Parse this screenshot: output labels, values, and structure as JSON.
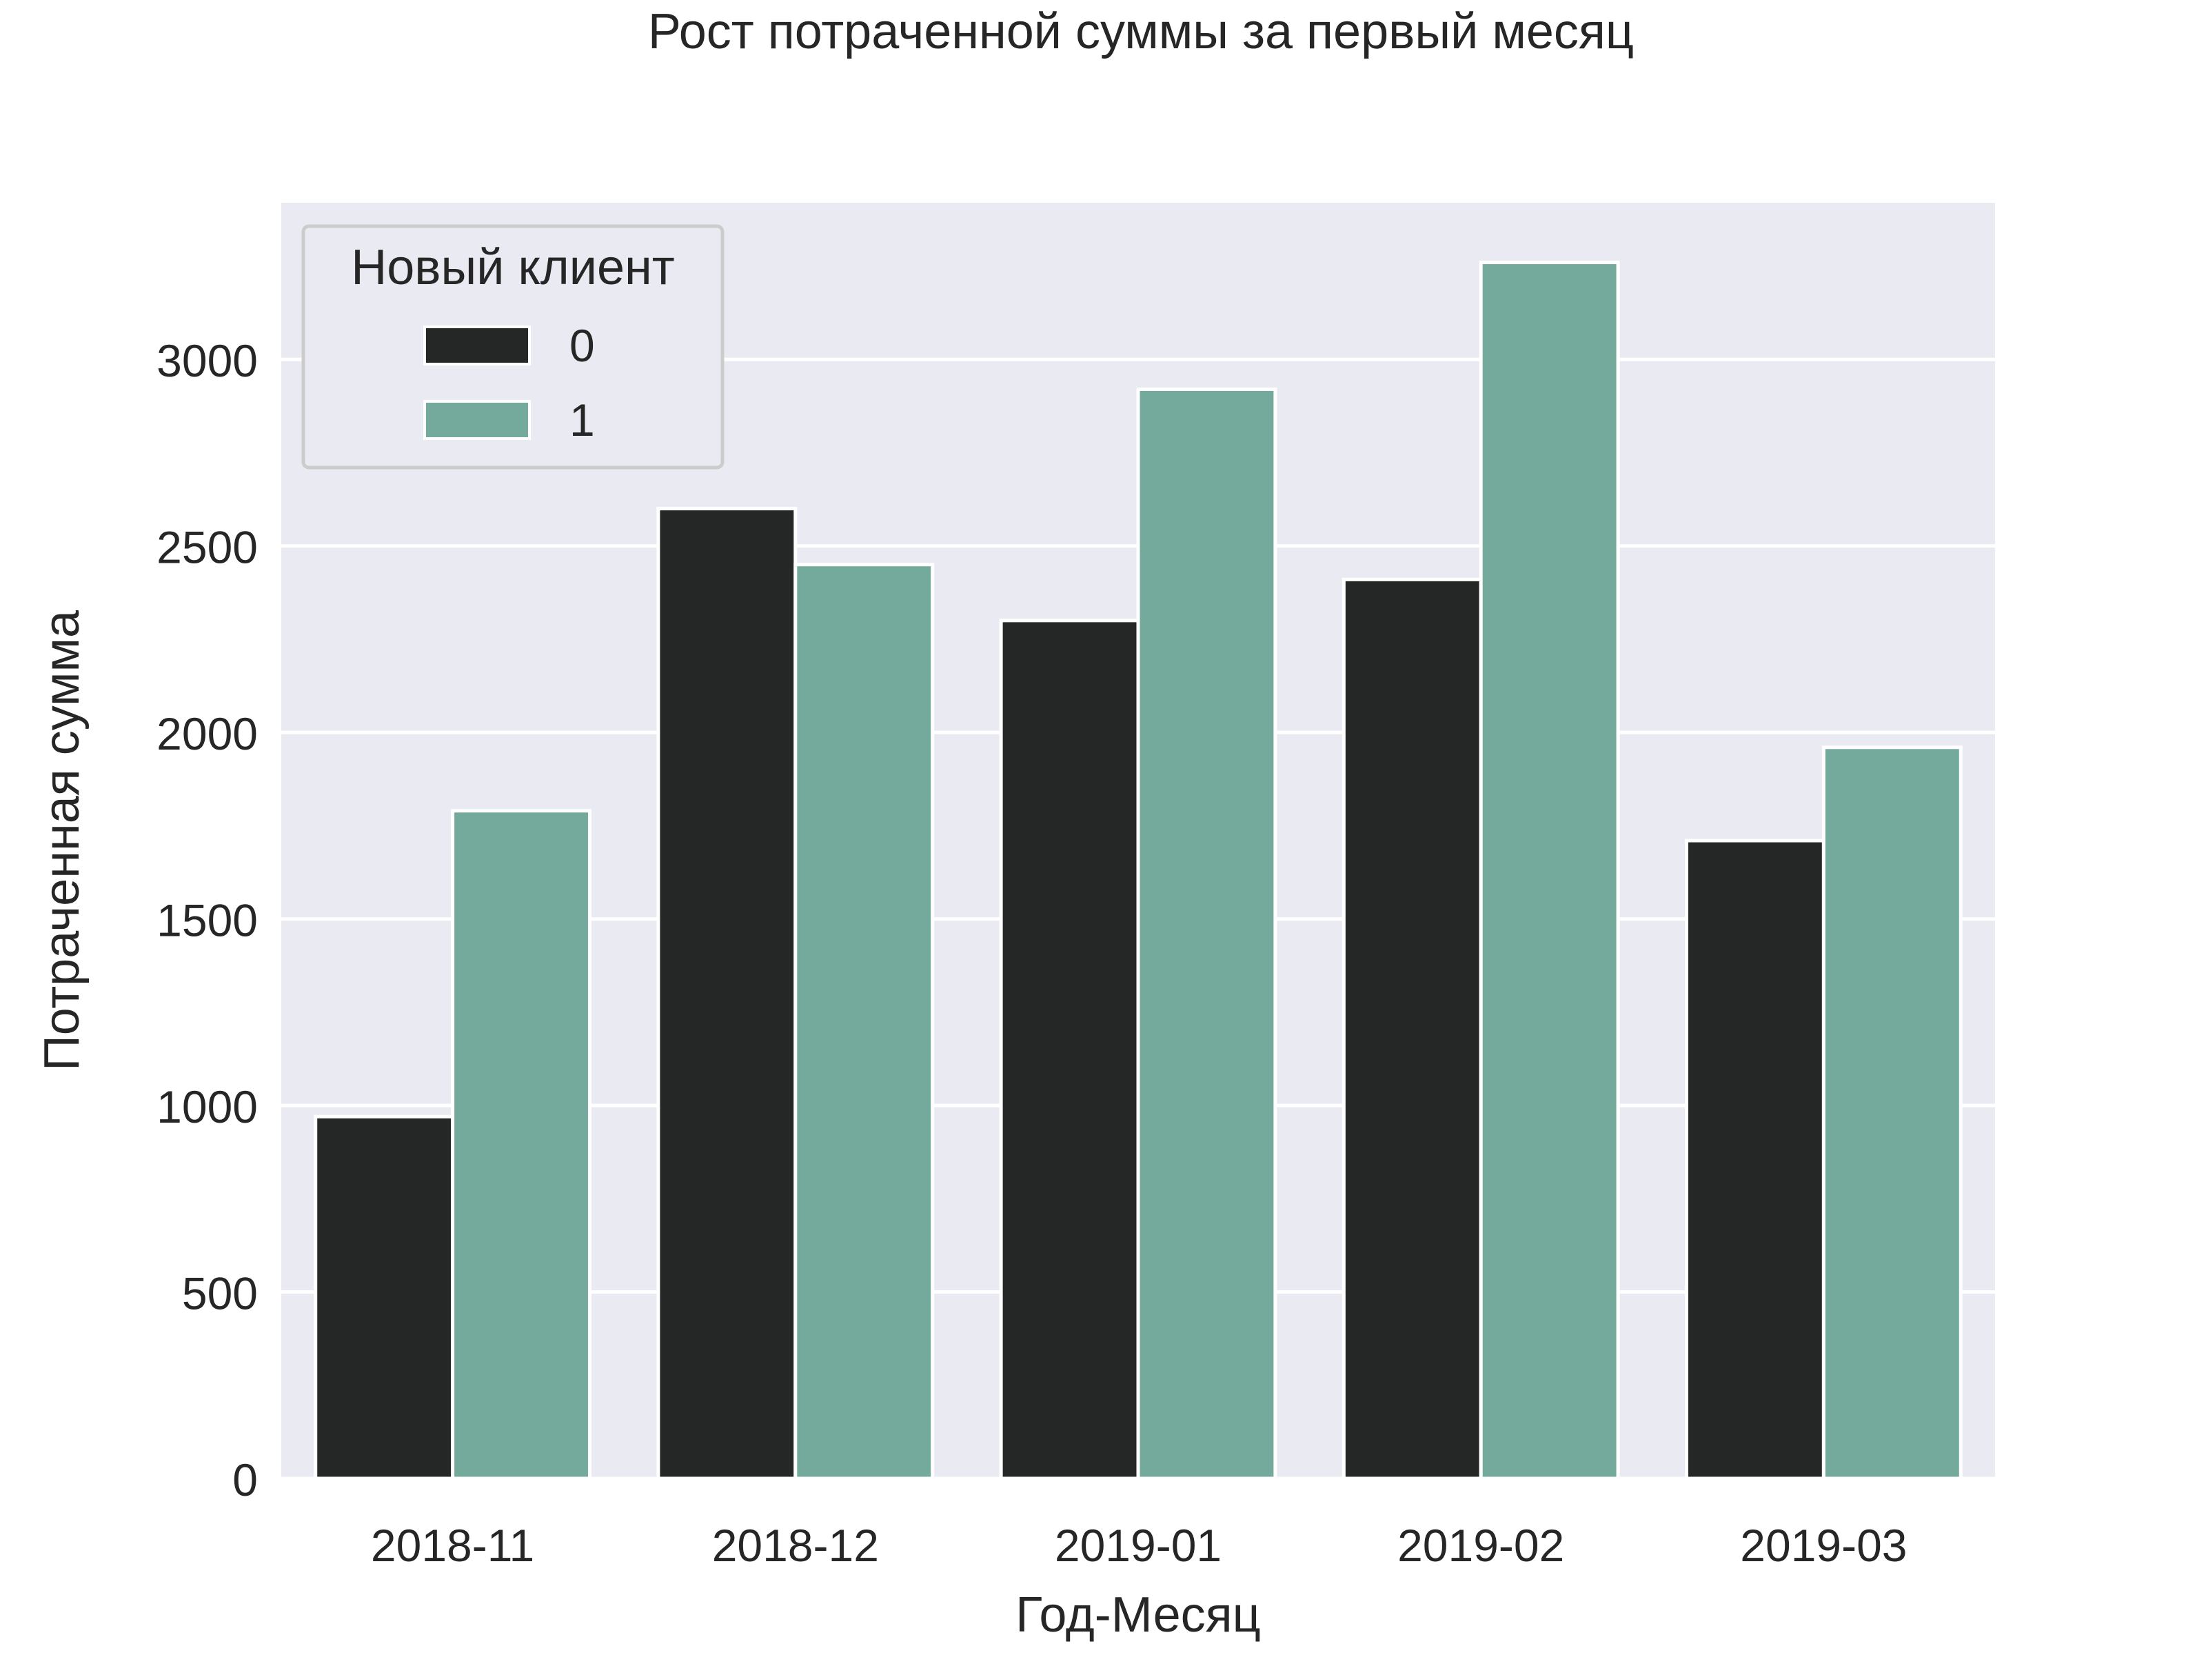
{
  "chart_data": {
    "type": "bar",
    "title": "Рост потраченной суммы за первый месяц",
    "xlabel": "Год-Месяц",
    "ylabel": "Потраченная сумма",
    "categories": [
      "2018-11",
      "2018-12",
      "2019-01",
      "2019-02",
      "2019-03"
    ],
    "series": [
      {
        "name": "0",
        "color": "#252726",
        "values": [
          970,
          2600,
          2300,
          2410,
          1710
        ]
      },
      {
        "name": "1",
        "color": "#73aa9c",
        "values": [
          1790,
          2450,
          2920,
          3260,
          1960
        ]
      }
    ],
    "ylim": [
      0,
      3420
    ],
    "yticks": [
      0,
      500,
      1000,
      1500,
      2000,
      2500,
      3000
    ],
    "grid": true,
    "legend": {
      "title": "Новый клиент",
      "position": "top-left"
    },
    "colors": {
      "plot_background": "#eaeaf2",
      "grid": "#ffffff"
    }
  }
}
